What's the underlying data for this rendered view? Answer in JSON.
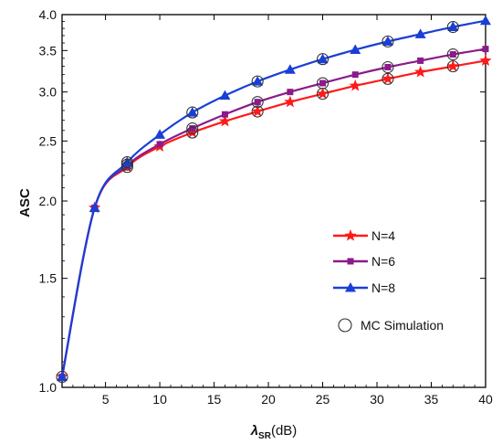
{
  "chart_data": {
    "type": "line",
    "title": "",
    "xlabel_main": "λ",
    "xlabel_sub": "SR",
    "xlabel_unit": "(dB)",
    "ylabel": "ASC",
    "xlim": [
      1,
      40
    ],
    "ylim": [
      1.0,
      4.0
    ],
    "y_scale": "log",
    "x_ticks": [
      5,
      10,
      15,
      20,
      25,
      30,
      35,
      40
    ],
    "y_ticks": [
      1.0,
      1.5,
      2.0,
      2.5,
      3.0,
      3.5,
      4.0
    ],
    "y_tick_labels": [
      "1.0",
      "1.5",
      "2.0",
      "2.5",
      "3.0",
      "3.5",
      "4.0"
    ],
    "grid": false,
    "legend_position": "center-right",
    "series": [
      {
        "name": "N=4",
        "color": "#ff1a1a",
        "marker": "star",
        "x": [
          1,
          4,
          7,
          10,
          13,
          16,
          19,
          22,
          25,
          28,
          31,
          34,
          37,
          40
        ],
        "y": [
          1.04,
          1.95,
          2.27,
          2.45,
          2.58,
          2.69,
          2.79,
          2.89,
          2.98,
          3.07,
          3.15,
          3.23,
          3.3,
          3.37
        ]
      },
      {
        "name": "N=6",
        "color": "#8b1a8b",
        "marker": "square",
        "x": [
          1,
          4,
          7,
          10,
          13,
          16,
          19,
          22,
          25,
          28,
          31,
          34,
          37,
          40
        ],
        "y": [
          1.04,
          1.95,
          2.28,
          2.47,
          2.62,
          2.76,
          2.89,
          3.0,
          3.1,
          3.2,
          3.29,
          3.37,
          3.45,
          3.52
        ]
      },
      {
        "name": "N=8",
        "color": "#1a3fd6",
        "marker": "triangle",
        "x": [
          1,
          4,
          7,
          10,
          13,
          16,
          19,
          22,
          25,
          28,
          31,
          34,
          37,
          40
        ],
        "y": [
          1.04,
          1.95,
          2.31,
          2.56,
          2.78,
          2.96,
          3.12,
          3.26,
          3.39,
          3.51,
          3.62,
          3.72,
          3.82,
          3.91
        ]
      }
    ],
    "simulation": {
      "name": "MC Simulation",
      "marker": "circle",
      "points": [
        [
          1,
          1.04
        ],
        [
          7,
          2.27
        ],
        [
          13,
          2.58
        ],
        [
          19,
          2.79
        ],
        [
          25,
          2.98
        ],
        [
          31,
          3.15
        ],
        [
          37,
          3.3
        ],
        [
          7,
          2.29
        ],
        [
          13,
          2.62
        ],
        [
          19,
          2.89
        ],
        [
          25,
          3.1
        ],
        [
          31,
          3.29
        ],
        [
          37,
          3.45
        ],
        [
          7,
          2.31
        ],
        [
          13,
          2.78
        ],
        [
          19,
          3.12
        ],
        [
          25,
          3.39
        ],
        [
          31,
          3.62
        ],
        [
          37,
          3.82
        ]
      ]
    }
  }
}
